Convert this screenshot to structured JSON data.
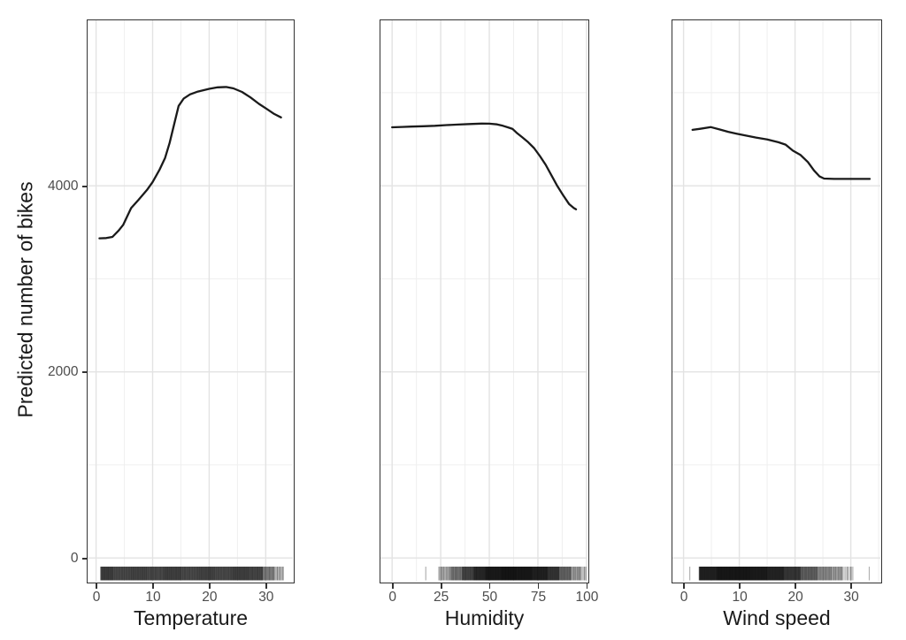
{
  "figure": {
    "background": "#ffffff",
    "description": "Partial dependence plots of predicted bike counts for three weather features with data rugs"
  },
  "chart_data": {
    "type": "line",
    "title": "",
    "xlabel": "",
    "ylabel": "Predicted number of bikes",
    "legend": "none",
    "grid": "major+minor",
    "ylim": [
      -255,
      5778
    ],
    "y_ticks": {
      "major": [
        0,
        2000,
        4000
      ],
      "minor": [
        1000,
        3000,
        5000
      ],
      "labels": [
        "0",
        "2000",
        "4000"
      ]
    },
    "panels": [
      {
        "xlabel": "Temperature",
        "xlim": [
          -1.5,
          34.8
        ],
        "x_ticks": {
          "major": [
            0,
            10,
            20,
            30
          ],
          "minor": [
            5,
            15,
            25
          ],
          "labels": [
            "0",
            "10",
            "20",
            "30"
          ]
        },
        "series": [
          [
            0.6,
            3435
          ],
          [
            1.8,
            3438
          ],
          [
            2.9,
            3450
          ],
          [
            4,
            3520
          ],
          [
            4.8,
            3580
          ],
          [
            6.2,
            3760
          ],
          [
            7.5,
            3848
          ],
          [
            9,
            3955
          ],
          [
            10,
            4040
          ],
          [
            11.2,
            4170
          ],
          [
            12.2,
            4300
          ],
          [
            13,
            4460
          ],
          [
            13.8,
            4660
          ],
          [
            14.6,
            4858
          ],
          [
            15.5,
            4938
          ],
          [
            16.6,
            4982
          ],
          [
            18,
            5012
          ],
          [
            20,
            5042
          ],
          [
            21.5,
            5058
          ],
          [
            23,
            5062
          ],
          [
            24.3,
            5046
          ],
          [
            25.8,
            5008
          ],
          [
            27.3,
            4950
          ],
          [
            28.8,
            4880
          ],
          [
            30.2,
            4825
          ],
          [
            31.5,
            4772
          ],
          [
            32.7,
            4735
          ]
        ],
        "rug_segments": [
          [
            0.8,
            3,
            50
          ],
          [
            3,
            6,
            60
          ],
          [
            6,
            9,
            64
          ],
          [
            9,
            12,
            60
          ],
          [
            12,
            15,
            66
          ],
          [
            15,
            18,
            60
          ],
          [
            18,
            21,
            64
          ],
          [
            21,
            24,
            60
          ],
          [
            24,
            27,
            66
          ],
          [
            27,
            29.5,
            52
          ],
          [
            29.5,
            31.5,
            24
          ],
          [
            31.5,
            33.2,
            12
          ]
        ]
      },
      {
        "xlabel": "Humidity",
        "xlim": [
          -6,
          100.5
        ],
        "x_ticks": {
          "major": [
            0,
            25,
            50,
            75,
            100
          ],
          "minor": [
            12.5,
            37.5,
            62.5,
            87.5
          ],
          "labels": [
            "0",
            "25",
            "50",
            "75",
            "100"
          ]
        },
        "series": [
          [
            0,
            4628
          ],
          [
            5,
            4632
          ],
          [
            10,
            4636
          ],
          [
            16,
            4640
          ],
          [
            22,
            4645
          ],
          [
            28,
            4652
          ],
          [
            34,
            4658
          ],
          [
            40,
            4664
          ],
          [
            46,
            4668
          ],
          [
            50,
            4667
          ],
          [
            54,
            4660
          ],
          [
            57,
            4645
          ],
          [
            60,
            4625
          ],
          [
            62,
            4610
          ],
          [
            64,
            4570
          ],
          [
            67,
            4520
          ],
          [
            70,
            4468
          ],
          [
            73,
            4405
          ],
          [
            76,
            4320
          ],
          [
            79,
            4225
          ],
          [
            82,
            4110
          ],
          [
            85,
            3998
          ],
          [
            88,
            3898
          ],
          [
            91,
            3805
          ],
          [
            93.5,
            3760
          ],
          [
            94.6,
            3747
          ]
        ],
        "rug_segments": [
          [
            17.3,
            17.7,
            1
          ],
          [
            24,
            30,
            16
          ],
          [
            30,
            36,
            28
          ],
          [
            36,
            42,
            44
          ],
          [
            42,
            48,
            60
          ],
          [
            48,
            56,
            96
          ],
          [
            56,
            64,
            104
          ],
          [
            64,
            72,
            100
          ],
          [
            72,
            80,
            88
          ],
          [
            80,
            86,
            52
          ],
          [
            86,
            92,
            32
          ],
          [
            92,
            97,
            16
          ],
          [
            97,
            100,
            6
          ]
        ]
      },
      {
        "xlabel": "Wind speed",
        "xlim": [
          -2,
          35.3
        ],
        "x_ticks": {
          "major": [
            0,
            10,
            20,
            30
          ],
          "minor": [
            5,
            15,
            25,
            35
          ],
          "labels": [
            "0",
            "10",
            "20",
            "30"
          ]
        },
        "series": [
          [
            1.6,
            4601
          ],
          [
            3,
            4612
          ],
          [
            4.9,
            4630
          ],
          [
            6.5,
            4605
          ],
          [
            8,
            4580
          ],
          [
            9.5,
            4560
          ],
          [
            11,
            4542
          ],
          [
            13,
            4518
          ],
          [
            15,
            4498
          ],
          [
            17,
            4468
          ],
          [
            18.3,
            4442
          ],
          [
            19.6,
            4378
          ],
          [
            21,
            4330
          ],
          [
            22.3,
            4255
          ],
          [
            23.4,
            4165
          ],
          [
            24.4,
            4100
          ],
          [
            25.2,
            4077
          ],
          [
            27,
            4074
          ],
          [
            30,
            4074
          ],
          [
            33.4,
            4074
          ]
        ],
        "rug_segments": [
          [
            1.1,
            1.4,
            1
          ],
          [
            2.8,
            6,
            100
          ],
          [
            6,
            9,
            108
          ],
          [
            9,
            12,
            108
          ],
          [
            12,
            15,
            102
          ],
          [
            15,
            18,
            90
          ],
          [
            18,
            21,
            72
          ],
          [
            21,
            24,
            48
          ],
          [
            24,
            26.5,
            27
          ],
          [
            26.5,
            28.5,
            18
          ],
          [
            28.5,
            30.5,
            9
          ],
          [
            33.3,
            33.6,
            1
          ]
        ]
      }
    ],
    "style": {
      "line_color": "#1a1a1a",
      "line_width": 2.3,
      "grid_major_color": "#e3e3e3",
      "grid_minor_color": "#efefef",
      "panel_border_color": "#333333",
      "tick_color": "#333333",
      "tick_label_color": "#4d4d4d",
      "axis_title_color": "#1a1a1a",
      "rug_color": "#000000",
      "rug_opacity": 0.3
    }
  }
}
